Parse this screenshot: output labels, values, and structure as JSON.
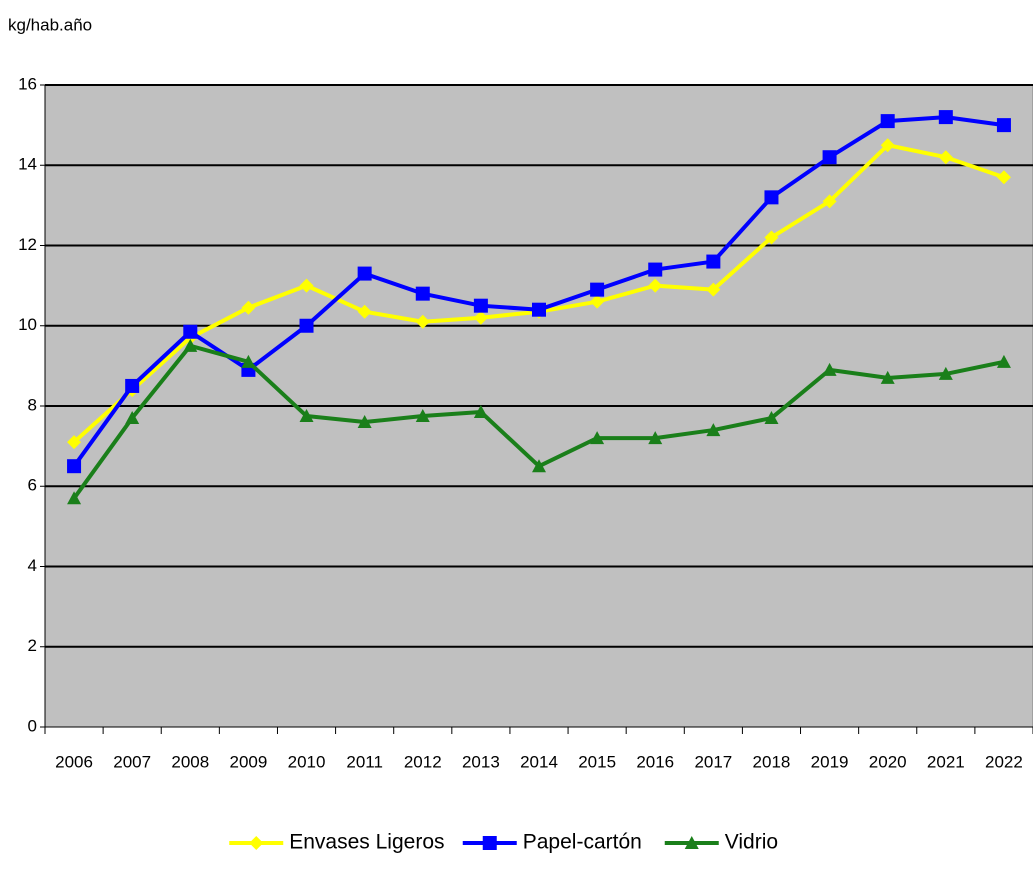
{
  "chart_data": {
    "type": "line",
    "y_label": "kg/hab.año",
    "categories": [
      "2006",
      "2007",
      "2008",
      "2009",
      "2010",
      "2011",
      "2012",
      "2013",
      "2014",
      "2015",
      "2016",
      "2017",
      "2018",
      "2019",
      "2020",
      "2021",
      "2022"
    ],
    "series": [
      {
        "name": "Envases Ligeros",
        "color": "#ffff00",
        "marker": "diamond",
        "values": [
          7.1,
          8.4,
          9.7,
          10.45,
          11.0,
          10.35,
          10.1,
          10.2,
          10.35,
          10.6,
          11.0,
          10.9,
          12.2,
          13.1,
          14.5,
          14.2,
          13.7
        ]
      },
      {
        "name": "Papel-cartón",
        "color": "#0000ff",
        "marker": "square",
        "values": [
          6.5,
          8.5,
          9.85,
          8.9,
          10.0,
          11.3,
          10.8,
          10.5,
          10.4,
          10.9,
          11.4,
          11.6,
          13.2,
          14.2,
          15.1,
          15.2,
          15.0
        ]
      },
      {
        "name": "Vidrio",
        "color": "#1a7f1a",
        "marker": "triangle",
        "values": [
          5.7,
          7.7,
          9.5,
          9.1,
          7.75,
          7.6,
          7.75,
          7.85,
          6.5,
          7.2,
          7.2,
          7.4,
          7.7,
          8.9,
          8.7,
          8.8,
          9.1
        ]
      }
    ],
    "ylim": [
      0,
      16
    ],
    "yticks": [
      0,
      2,
      4,
      6,
      8,
      10,
      12,
      14,
      16
    ],
    "grid": true,
    "legend": "bottom"
  }
}
